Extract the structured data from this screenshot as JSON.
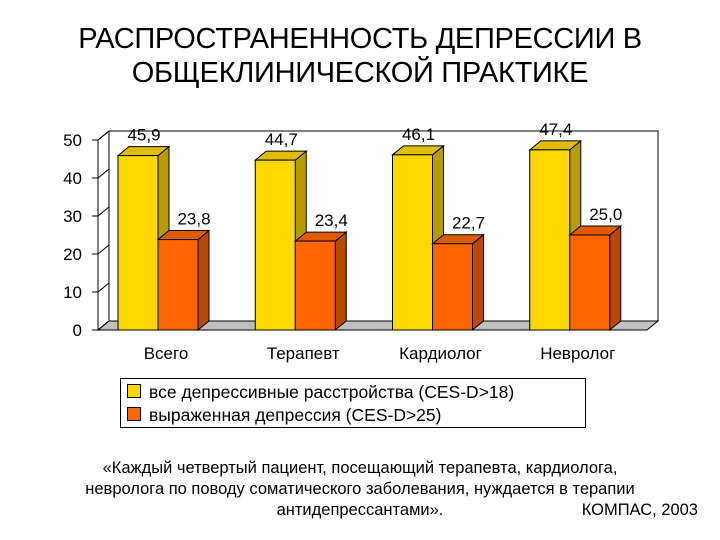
{
  "title": {
    "line1": "РАСПРОСТРАНЕННОСТЬ ДЕПРЕССИИ В",
    "line2": "ОБЩЕКЛИНИЧЕСКОЙ ПРАКТИКЕ"
  },
  "chart_data": {
    "type": "bar",
    "categories": [
      "Всего",
      "Терапевт",
      "Кардиолог",
      "Невролог"
    ],
    "series": [
      {
        "name": "все депрессивные расстройства (CES-D>18)",
        "values": [
          45.9,
          44.7,
          46.1,
          47.4
        ],
        "labels": [
          "45,9",
          "44,7",
          "46,1",
          "47,4"
        ],
        "color": "#FFD700"
      },
      {
        "name": "выраженная депрессия (CES-D>25)",
        "values": [
          23.8,
          23.4,
          22.7,
          25.0
        ],
        "labels": [
          "23,8",
          "23,4",
          "22,7",
          "25,0"
        ],
        "color": "#FF6600"
      }
    ],
    "yticks": [
      "0",
      "10",
      "20",
      "30",
      "40",
      "50"
    ],
    "ylim": [
      0,
      50
    ],
    "grid": false,
    "three_d": true,
    "legend_position": "bottom"
  },
  "quote": {
    "line1": "«Каждый четвертый пациент, посещающий терапевта, кардиолога,",
    "line2": "невролога по поводу соматического заболевания, нуждается в терапии",
    "line3": "антидепрессантами».",
    "source": "КОМПАС, 2003"
  }
}
